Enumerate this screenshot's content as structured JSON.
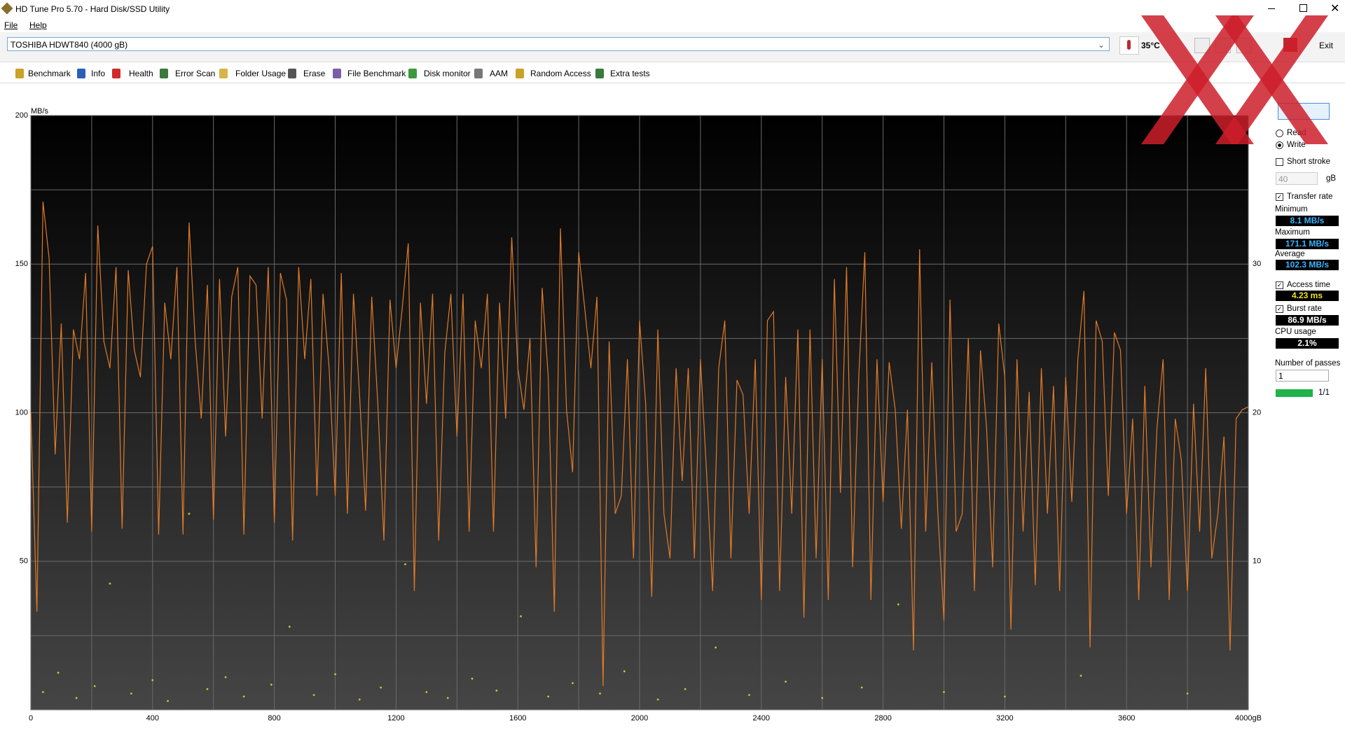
{
  "window": {
    "title": "HD Tune Pro 5.70 - Hard Disk/SSD Utility"
  },
  "menu": [
    "File",
    "Help"
  ],
  "drive": "TOSHIBA HDWT840 (4000 gB)",
  "temperature": "35°C",
  "exit": "Exit",
  "tabs": [
    "Benchmark",
    "Info",
    "Health",
    "Error Scan",
    "Folder Usage",
    "Erase",
    "File Benchmark",
    "Disk monitor",
    "AAM",
    "Random Access",
    "Extra tests"
  ],
  "panel": {
    "read": "Read",
    "write": "Write",
    "short_stroke": "Short stroke",
    "stroke_size": "40",
    "stroke_unit": "gB",
    "transfer_rate": "Transfer rate",
    "minimum": {
      "label": "Minimum",
      "value": "8.1 MB/s"
    },
    "maximum": {
      "label": "Maximum",
      "value": "171.1 MB/s"
    },
    "average": {
      "label": "Average",
      "value": "102.3 MB/s"
    },
    "access_time": {
      "label": "Access time",
      "value": "4.23 ms"
    },
    "burst_rate": {
      "label": "Burst rate",
      "value": "86.9 MB/s"
    },
    "cpu_usage": {
      "label": "CPU usage",
      "value": "2.1%"
    },
    "passes_label": "Number of passes",
    "passes": "1",
    "progress": "1/1"
  },
  "chart_data": {
    "type": "line",
    "y_label": "MB/s",
    "grid": true,
    "xlim": [
      0,
      4000
    ],
    "ylim": [
      0,
      200
    ],
    "y2lim": [
      0,
      40
    ],
    "xticks": [
      0,
      400,
      800,
      1200,
      1600,
      2000,
      2400,
      2800,
      3200,
      3600,
      {
        "value": 4000,
        "label": "4000gB"
      }
    ],
    "x_minor_gridlines": [
      200,
      600,
      1000,
      1400,
      1800,
      2200,
      2600,
      3000,
      3400,
      3800
    ],
    "yticks": [
      50,
      100,
      150,
      200
    ],
    "y_minor_gridlines": [
      25,
      75,
      125,
      175
    ],
    "y2ticks": [
      10,
      20,
      30
    ],
    "x": [
      0,
      20,
      40,
      60,
      80,
      100,
      120,
      140,
      160,
      180,
      200,
      220,
      240,
      260,
      280,
      300,
      320,
      340,
      360,
      380,
      400,
      420,
      440,
      460,
      480,
      500,
      520,
      540,
      560,
      580,
      600,
      620,
      640,
      660,
      680,
      700,
      720,
      740,
      760,
      780,
      800,
      820,
      840,
      860,
      880,
      900,
      920,
      940,
      960,
      980,
      1000,
      1020,
      1040,
      1060,
      1080,
      1100,
      1120,
      1140,
      1160,
      1180,
      1200,
      1220,
      1240,
      1260,
      1280,
      1300,
      1320,
      1340,
      1360,
      1380,
      1400,
      1420,
      1440,
      1460,
      1480,
      1500,
      1520,
      1540,
      1560,
      1580,
      1600,
      1620,
      1640,
      1660,
      1680,
      1700,
      1720,
      1740,
      1760,
      1780,
      1800,
      1820,
      1840,
      1860,
      1880,
      1900,
      1920,
      1940,
      1960,
      1980,
      2000,
      2020,
      2040,
      2060,
      2080,
      2100,
      2120,
      2140,
      2160,
      2180,
      2200,
      2220,
      2240,
      2260,
      2280,
      2300,
      2320,
      2340,
      2360,
      2380,
      2400,
      2420,
      2440,
      2460,
      2480,
      2500,
      2520,
      2540,
      2560,
      2580,
      2600,
      2620,
      2640,
      2660,
      2680,
      2700,
      2720,
      2740,
      2760,
      2780,
      2800,
      2820,
      2840,
      2860,
      2880,
      2900,
      2920,
      2940,
      2960,
      2980,
      3000,
      3020,
      3040,
      3060,
      3080,
      3100,
      3120,
      3140,
      3160,
      3180,
      3200,
      3220,
      3240,
      3260,
      3280,
      3300,
      3320,
      3340,
      3360,
      3380,
      3400,
      3420,
      3440,
      3460,
      3480,
      3500,
      3520,
      3540,
      3560,
      3580,
      3600,
      3620,
      3640,
      3660,
      3680,
      3700,
      3720,
      3740,
      3760,
      3780,
      3800,
      3820,
      3840,
      3860,
      3880,
      3900,
      3920,
      3940,
      3960,
      3980,
      4000
    ],
    "series": [
      {
        "mark": "line",
        "color": "#e07a28",
        "values": [
          100,
          33,
          171,
          152,
          86,
          130,
          63,
          128,
          118,
          147,
          60,
          163,
          124,
          115,
          149,
          61,
          148,
          121,
          112,
          150,
          156,
          59,
          137,
          118,
          149,
          59,
          164,
          124,
          98,
          143,
          64,
          145,
          92,
          139,
          149,
          59,
          146,
          143,
          98,
          149,
          63,
          147,
          138,
          57,
          149,
          118,
          145,
          72,
          140,
          115,
          72,
          147,
          66,
          140,
          106,
          67,
          139,
          103,
          57,
          138,
          115,
          135,
          157,
          40,
          137,
          103,
          140,
          57,
          120,
          140,
          92,
          140,
          60,
          131,
          115,
          140,
          60,
          137,
          98,
          159,
          115,
          101,
          125,
          48,
          142,
          112,
          33,
          162,
          101,
          80,
          154,
          135,
          115,
          139,
          8,
          124,
          66,
          72,
          118,
          51,
          131,
          103,
          38,
          128,
          66,
          51,
          115,
          77,
          115,
          51,
          118,
          80,
          40,
          115,
          131,
          51,
          111,
          106,
          66,
          118,
          37,
          131,
          134,
          40,
          112,
          66,
          128,
          31,
          128,
          51,
          118,
          37,
          145,
          73,
          149,
          48,
          112,
          154,
          37,
          118,
          70,
          117,
          101,
          61,
          101,
          20,
          155,
          60,
          117,
          66,
          30,
          138,
          60,
          66,
          125,
          40,
          121,
          95,
          48,
          130,
          112,
          27,
          118,
          60,
          107,
          42,
          115,
          66,
          109,
          40,
          112,
          70,
          118,
          141,
          21,
          131,
          124,
          72,
          127,
          121,
          66,
          98,
          37,
          109,
          48,
          95,
          118,
          37,
          98,
          84,
          40,
          103,
          60,
          115,
          51,
          66,
          92,
          20,
          98,
          101,
          102
        ]
      },
      {
        "mark": "dots",
        "axis": "y2",
        "color": "#c8c832",
        "x": [
          40,
          90,
          150,
          210,
          260,
          330,
          400,
          450,
          520,
          580,
          640,
          700,
          790,
          850,
          930,
          1000,
          1080,
          1150,
          1230,
          1300,
          1370,
          1450,
          1530,
          1610,
          1700,
          1780,
          1870,
          1950,
          2060,
          2150,
          2250,
          2360,
          2480,
          2600,
          2730,
          2850,
          3000,
          3200,
          3450,
          3800
        ],
        "values": [
          1.2,
          2.5,
          0.8,
          1.6,
          8.5,
          1.1,
          2.0,
          0.6,
          13.2,
          1.4,
          2.2,
          0.9,
          1.7,
          5.6,
          1.0,
          2.4,
          0.7,
          1.5,
          9.8,
          1.2,
          0.8,
          2.1,
          1.3,
          6.3,
          0.9,
          1.8,
          1.1,
          2.6,
          0.7,
          1.4,
          4.2,
          1.0,
          1.9,
          0.8,
          1.5,
          7.1,
          1.2,
          0.9,
          2.3,
          1.1
        ]
      }
    ]
  }
}
